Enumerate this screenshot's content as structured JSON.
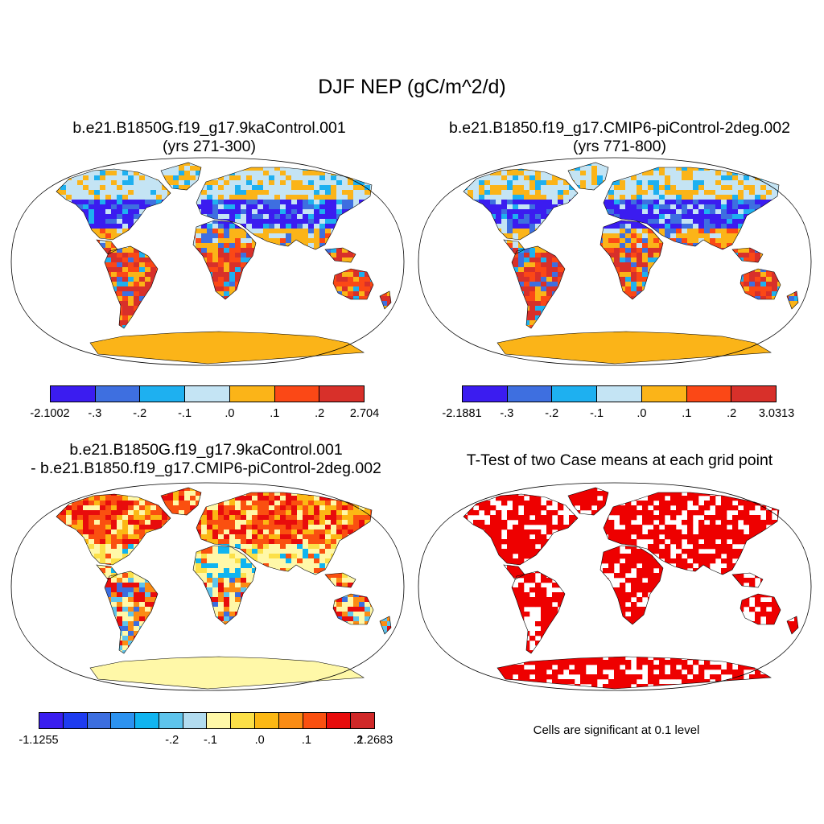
{
  "title": "DJF NEP (gC/m^2/d)",
  "panels": {
    "top_left": {
      "title_line1": "b.e21.B1850G.f19_g17.9kaControl.001",
      "title_line2": "(yrs 271-300)",
      "colors": [
        "#3b1cf0",
        "#3e6fe0",
        "#1eb0f0",
        "#c4e4f4",
        "#fbb418",
        "#fb4816",
        "#d8302a"
      ],
      "ticks": [
        "-2.1002",
        "-.3",
        "-.2",
        "-.1",
        ".0",
        ".1",
        ".2",
        "2.704"
      ]
    },
    "top_right": {
      "title_line1": "b.e21.B1850.f19_g17.CMIP6-piControl-2deg.002",
      "title_line2": "(yrs 771-800)",
      "colors": [
        "#3b1cf0",
        "#3e6fe0",
        "#1eb0f0",
        "#c4e4f4",
        "#fbb418",
        "#fb4816",
        "#d8302a"
      ],
      "ticks": [
        "-2.1881",
        "-.3",
        "-.2",
        "-.1",
        ".0",
        ".1",
        ".2",
        "3.0313"
      ]
    },
    "bottom_left": {
      "title_line1": "b.e21.B1850G.f19_g17.9kaControl.001",
      "title_line2": "- b.e21.B1850.f19_g17.CMIP6-piControl-2deg.002",
      "colors": [
        "#3a1ef0",
        "#1e3cf0",
        "#3c6ee0",
        "#2c92f0",
        "#10b4f0",
        "#5ec4ec",
        "#b2dcf0",
        "#fff8a8",
        "#fce048",
        "#fcb814",
        "#fb8c14",
        "#fa5010",
        "#e80c0c",
        "#d02828"
      ],
      "ticks": [
        "-1.1255",
        "-.2",
        "-.1",
        ".0",
        ".1",
        ".2",
        "1.2683"
      ]
    },
    "bottom_right": {
      "title": "T-Test of two Case means at each grid point",
      "note": "Cells are significant at 0.1 level",
      "fill_color": "#ee0000"
    }
  }
}
